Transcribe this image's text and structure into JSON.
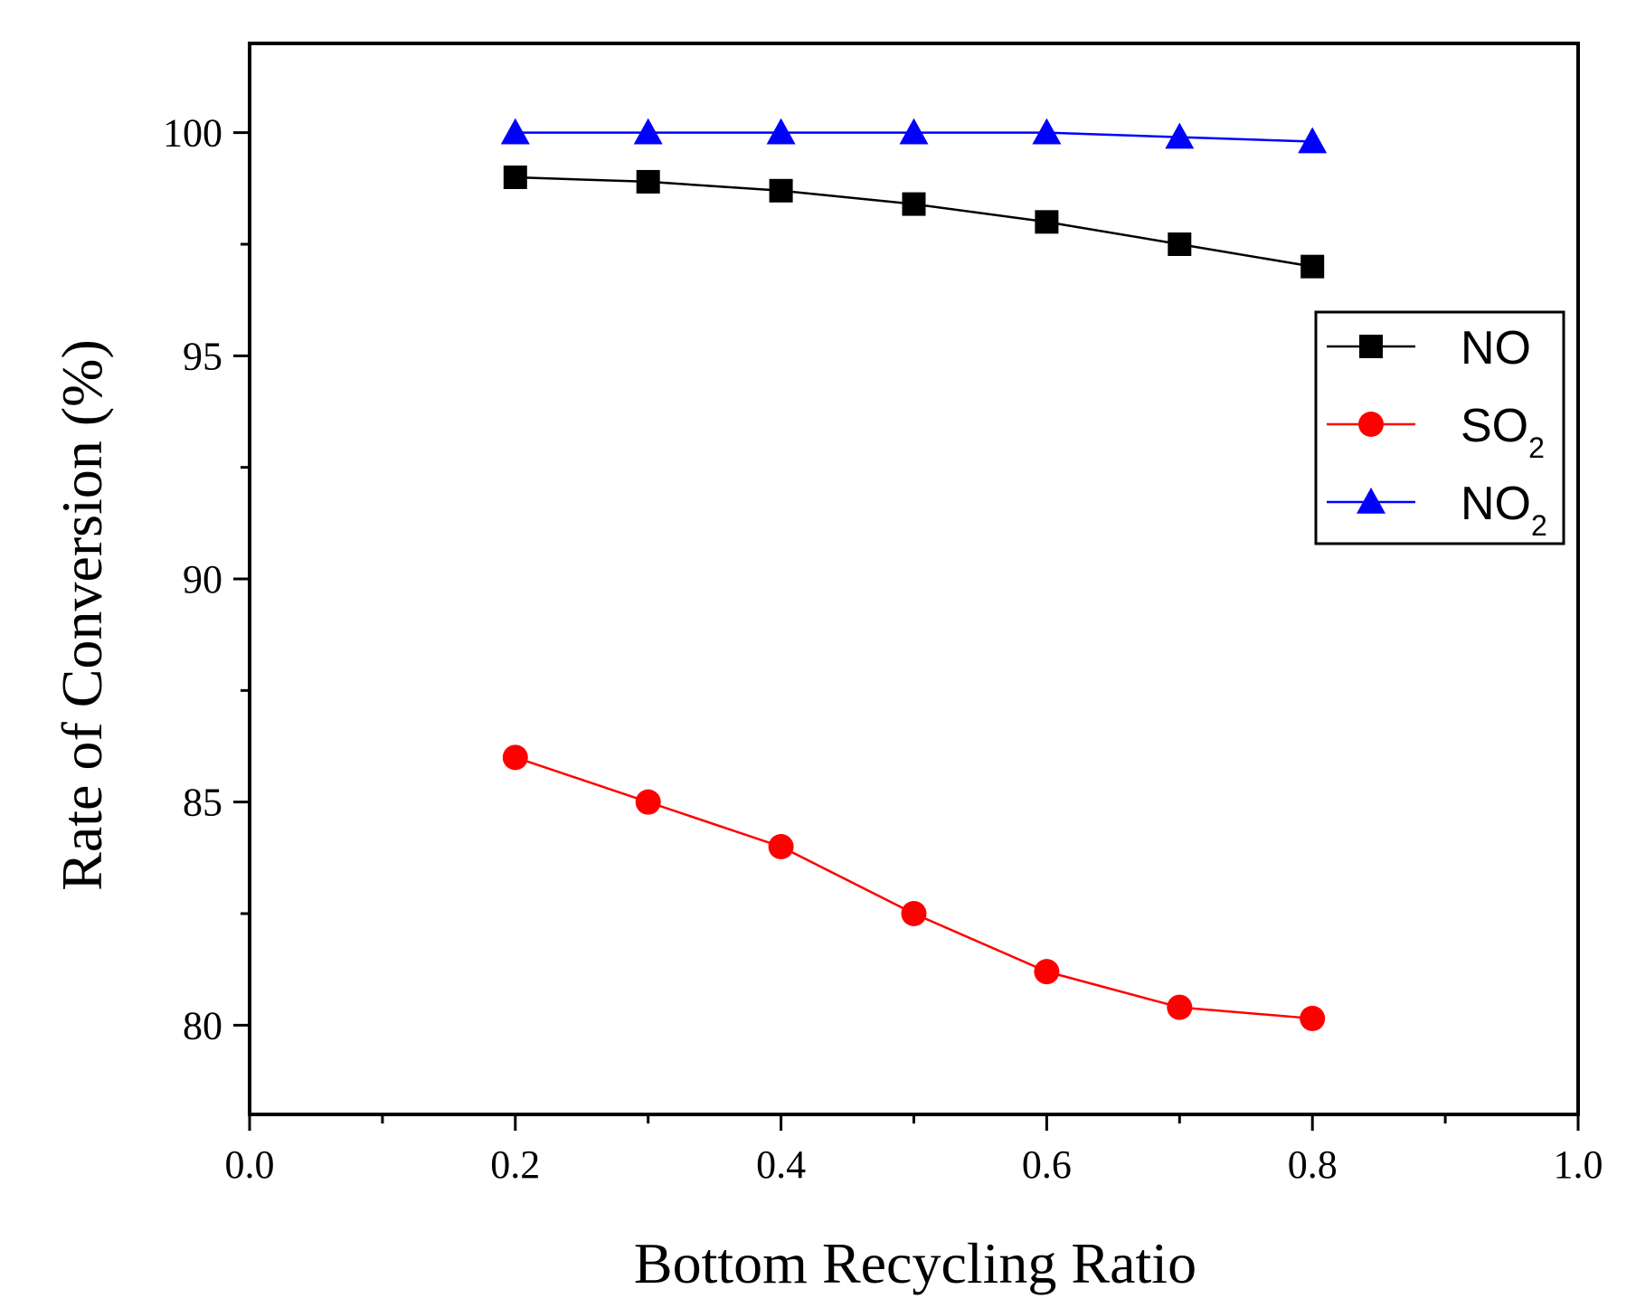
{
  "chart_data": {
    "type": "line",
    "title": "",
    "xlabel": "Bottom Recycling Ratio",
    "ylabel": "Rate of Conversion (%)",
    "xlim": [
      0.0,
      1.0
    ],
    "ylim": [
      78,
      102
    ],
    "x_ticks": [
      0.0,
      0.2,
      0.4,
      0.6,
      0.8,
      1.0
    ],
    "x_tick_labels": [
      "0.0",
      "0.2",
      "0.4",
      "0.6",
      "0.8",
      "1.0"
    ],
    "x_minor_ticks": [
      0.1,
      0.3,
      0.5,
      0.7,
      0.9
    ],
    "y_ticks": [
      80,
      85,
      90,
      95,
      100
    ],
    "y_tick_labels": [
      "80",
      "85",
      "90",
      "95",
      "100"
    ],
    "y_minor_ticks": [
      82.5,
      87.5,
      92.5,
      97.5
    ],
    "x": [
      0.2,
      0.3,
      0.4,
      0.5,
      0.6,
      0.7,
      0.8
    ],
    "series": [
      {
        "name": "NO",
        "label_main": "NO",
        "label_sub": "",
        "marker": "square",
        "color": "#000000",
        "values": [
          99.0,
          98.9,
          98.7,
          98.4,
          98.0,
          97.5,
          97.0
        ]
      },
      {
        "name": "SO2",
        "label_main": "SO",
        "label_sub": "2",
        "marker": "circle",
        "color": "#ff0000",
        "values": [
          86.0,
          85.0,
          84.0,
          82.5,
          81.2,
          80.4,
          80.15
        ]
      },
      {
        "name": "NO2",
        "label_main": "NO",
        "label_sub": "2",
        "marker": "triangle",
        "color": "#0000ff",
        "values": [
          100.0,
          100.0,
          100.0,
          100.0,
          100.0,
          99.9,
          99.8
        ]
      }
    ],
    "legend_position": "top-right",
    "grid": false
  }
}
